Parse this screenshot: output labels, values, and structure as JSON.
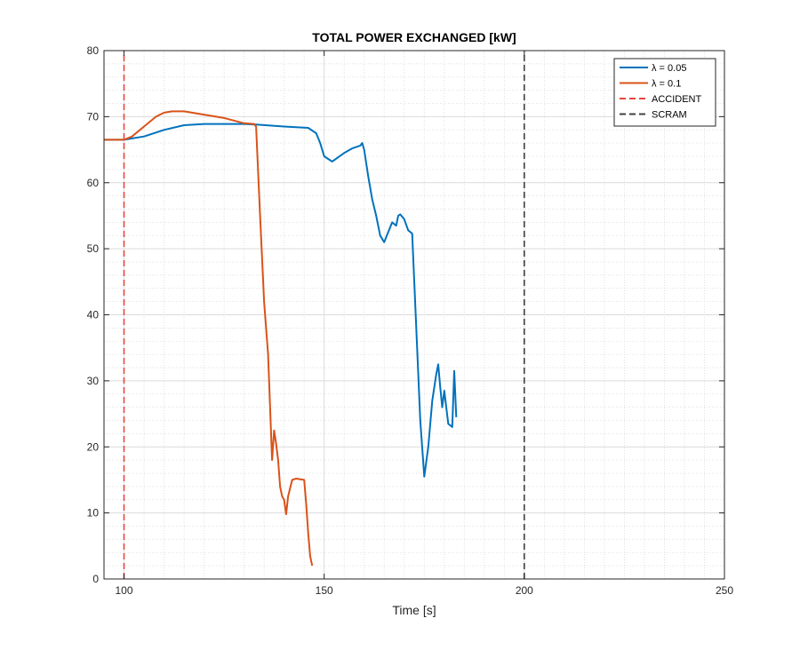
{
  "chart_data": {
    "type": "line",
    "title": "TOTAL POWER EXCHANGED [kW]",
    "xlabel": "Time [s]",
    "ylabel": "",
    "xlim": [
      95,
      250
    ],
    "ylim": [
      0,
      80
    ],
    "xticks": [
      100,
      150,
      200,
      250
    ],
    "yticks": [
      0,
      10,
      20,
      30,
      40,
      50,
      60,
      70,
      80
    ],
    "grid": true,
    "minor_grid": true,
    "legend_position": "top-right",
    "series": [
      {
        "name": "λ = 0.05",
        "color": "#0072BD",
        "style": "solid",
        "x": [
          95,
          100,
          105,
          110,
          115,
          120,
          125,
          130,
          133,
          140,
          146,
          148,
          149,
          150,
          151,
          152,
          155,
          157,
          159,
          159.5,
          160,
          161,
          162,
          163,
          164,
          165,
          166,
          167,
          168,
          168.5,
          169,
          170,
          171,
          172,
          173,
          174,
          175,
          176,
          177,
          178,
          178.5,
          179,
          179.5,
          180,
          181,
          182,
          182.5,
          183
        ],
        "y": [
          66.5,
          66.5,
          67.0,
          68.0,
          68.7,
          68.9,
          68.9,
          68.9,
          68.8,
          68.5,
          68.3,
          67.5,
          66.0,
          64.0,
          63.6,
          63.2,
          64.5,
          65.2,
          65.6,
          66.0,
          65.0,
          61.0,
          57.5,
          55.0,
          52.0,
          51.0,
          52.5,
          54.0,
          53.5,
          55.0,
          55.2,
          54.5,
          52.8,
          52.3,
          38.0,
          24.0,
          15.5,
          20.0,
          27.0,
          31.0,
          32.5,
          29.0,
          26.0,
          28.5,
          23.5,
          23.0,
          31.5,
          24.5
        ]
      },
      {
        "name": "λ = 0.1",
        "color": "#D95319",
        "style": "solid",
        "x": [
          95,
          100,
          102,
          105,
          108,
          110,
          112,
          115,
          120,
          125,
          130,
          132.5,
          133,
          134,
          135,
          136,
          137,
          137.5,
          138,
          138.5,
          139,
          139.5,
          140,
          140.5,
          141,
          142,
          143,
          144,
          145,
          145.5,
          146,
          146.5,
          147
        ],
        "y": [
          66.5,
          66.5,
          67.0,
          68.5,
          70.0,
          70.6,
          70.8,
          70.8,
          70.3,
          69.8,
          69.0,
          68.9,
          68.5,
          55.0,
          42.0,
          34.0,
          18.0,
          22.5,
          20.5,
          18.0,
          14.0,
          12.5,
          12.0,
          9.8,
          12.5,
          15.0,
          15.2,
          15.1,
          15.0,
          11.5,
          7.0,
          3.5,
          2.0
        ]
      },
      {
        "name": "ACCIDENT",
        "color": "#E8463C",
        "style": "dashed",
        "x": [
          100,
          100
        ],
        "y": [
          0,
          80
        ]
      },
      {
        "name": "SCRAM",
        "color": "#404040",
        "style": "dashed",
        "x": [
          200,
          200
        ],
        "y": [
          0,
          80
        ]
      }
    ]
  }
}
